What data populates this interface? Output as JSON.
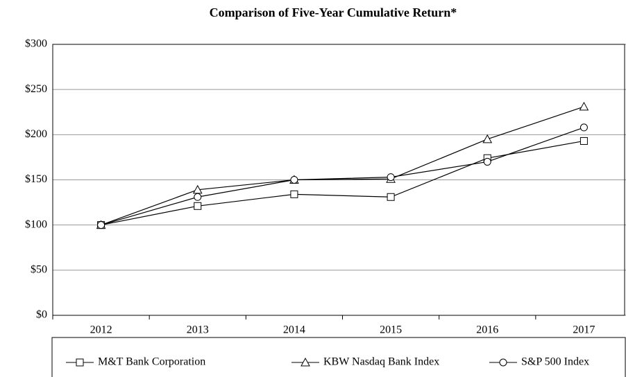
{
  "chart_data": {
    "type": "line",
    "title": "Comparison of Five-Year Cumulative Return*",
    "categories": [
      "2012",
      "2013",
      "2014",
      "2015",
      "2016",
      "2017"
    ],
    "series": [
      {
        "name": "M&T Bank Corporation",
        "color": "#000000",
        "marker": "square",
        "values": [
          100,
          121,
          134,
          131,
          174,
          193
        ]
      },
      {
        "name": "KBW Nasdaq Bank Index",
        "color": "#000000",
        "marker": "triangle",
        "values": [
          100,
          139,
          150,
          151,
          195,
          231
        ]
      },
      {
        "name": "S&P 500 Index",
        "color": "#000000",
        "marker": "circle",
        "values": [
          100,
          131,
          150,
          153,
          170,
          208
        ]
      }
    ],
    "ylim": [
      0,
      300
    ],
    "yticks": [
      {
        "value": 0,
        "label": "$0"
      },
      {
        "value": 50,
        "label": "$50"
      },
      {
        "value": 100,
        "label": "$100"
      },
      {
        "value": 150,
        "label": "$150"
      },
      {
        "value": 200,
        "label": "$200"
      },
      {
        "value": 250,
        "label": "$250"
      },
      {
        "value": 300,
        "label": "$300"
      }
    ],
    "grid": true,
    "legend": "bottom"
  }
}
